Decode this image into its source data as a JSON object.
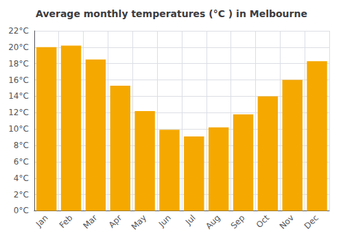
{
  "chart_data": {
    "type": "bar",
    "title": "Average monthly temperatures (°C ) in Melbourne",
    "categories": [
      "Jan",
      "Feb",
      "Mar",
      "Apr",
      "May",
      "Jun",
      "Jul",
      "Aug",
      "Sep",
      "Oct",
      "Nov",
      "Dec"
    ],
    "values": [
      20.0,
      20.2,
      18.5,
      15.3,
      12.2,
      9.9,
      9.1,
      10.2,
      11.8,
      14.0,
      16.0,
      18.3
    ],
    "color": "#F5A800",
    "ylim": [
      0,
      22
    ],
    "yticks": [
      {
        "value": 0,
        "label": "0°C"
      },
      {
        "value": 2,
        "label": "2°C"
      },
      {
        "value": 4,
        "label": "4°C"
      },
      {
        "value": 6,
        "label": "6°C"
      },
      {
        "value": 8,
        "label": "8°C"
      },
      {
        "value": 10,
        "label": "10°C"
      },
      {
        "value": 12,
        "label": "12°C"
      },
      {
        "value": 14,
        "label": "14°C"
      },
      {
        "value": 16,
        "label": "16°C"
      },
      {
        "value": 18,
        "label": "18°C"
      },
      {
        "value": 20,
        "label": "20°C"
      },
      {
        "value": 22,
        "label": "22°C"
      }
    ],
    "grid": true
  }
}
